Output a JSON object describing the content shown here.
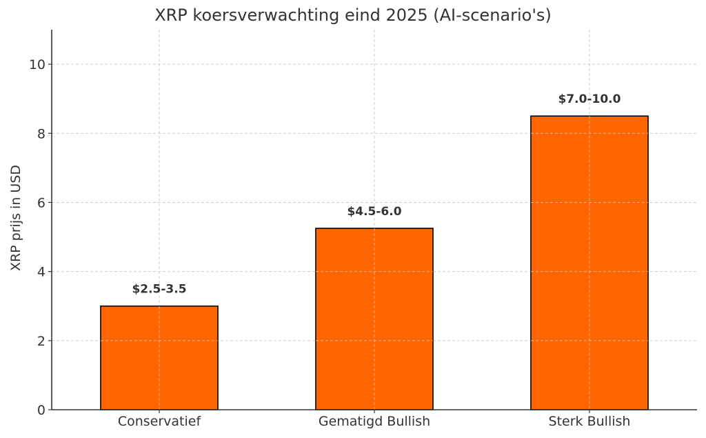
{
  "chart_data": {
    "type": "bar",
    "title": "XRP koersverwachting eind 2025 (AI-scenario's)",
    "xlabel": "",
    "ylabel": "XRP prijs in USD",
    "categories": [
      "Conservatief",
      "Gematigd Bullish",
      "Sterk Bullish"
    ],
    "values": [
      3.0,
      5.25,
      8.5
    ],
    "bar_labels": [
      "$2.5-3.5",
      "$4.5-6.0",
      "$7.0-10.0"
    ],
    "ylim": [
      0,
      11
    ],
    "yticks": [
      0,
      2,
      4,
      6,
      8,
      10
    ],
    "grid": true,
    "grid_style": "dashed",
    "legend": null,
    "colors": {
      "bar_fill": "#ff6600",
      "bar_edge": "#000000",
      "grid": "#cccccc",
      "axis": "#333333",
      "text": "#333333"
    }
  }
}
